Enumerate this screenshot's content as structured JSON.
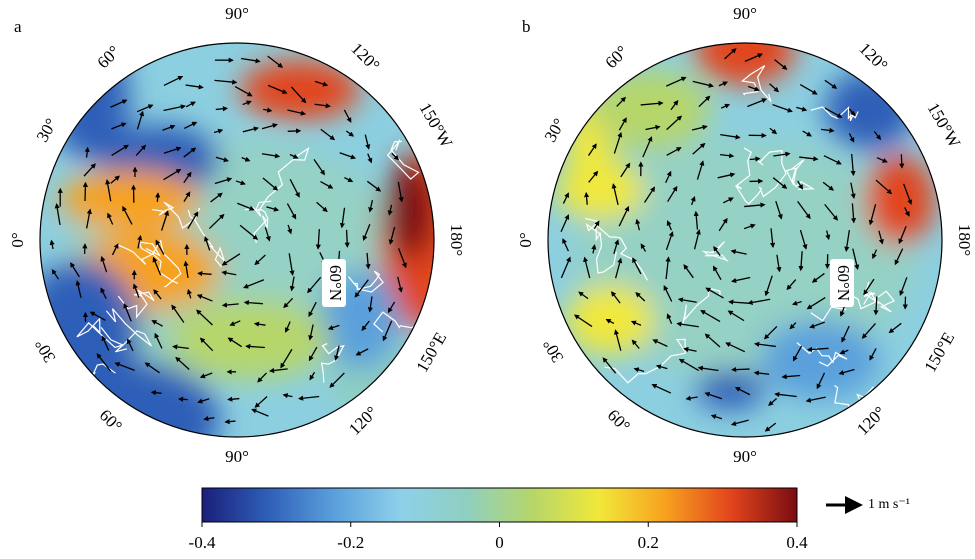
{
  "panels": [
    {
      "label": "a",
      "lon_labels": [
        "90°",
        "60°",
        "120°",
        "30°",
        "150°W",
        "0°",
        "180°",
        "30°",
        "150°E",
        "60°",
        "120°",
        "90°"
      ],
      "lat_label": "60°N"
    },
    {
      "label": "b",
      "lon_labels": [
        "90°",
        "60°",
        "120°",
        "30°",
        "150°W",
        "0°",
        "180°",
        "30°",
        "150°E",
        "60°",
        "120°",
        "90°"
      ],
      "lat_label": "60°N"
    }
  ],
  "colorbar": {
    "lim": [
      -0.4,
      0.4
    ],
    "ticks": [
      -0.4,
      -0.2,
      0,
      0.2,
      0.4
    ],
    "colors": [
      "#1a1f7a",
      "#2f5fb8",
      "#5aa0dc",
      "#8ed0ea",
      "#8fcfc0",
      "#b6d66a",
      "#f1e83a",
      "#f7a21f",
      "#e2451c",
      "#7a0c12"
    ]
  },
  "vector_key": {
    "label": "1 m s⁻¹"
  }
}
